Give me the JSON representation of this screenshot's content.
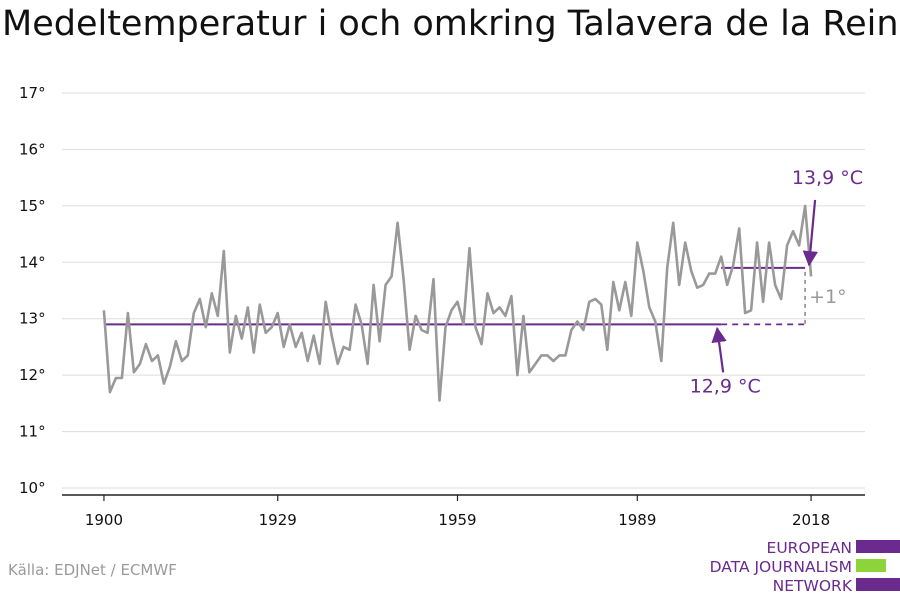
{
  "page": {
    "title": "Medeltemperatur i och omkring Talavera de la Reina",
    "source": "Källa: EDJNet / ECMWF"
  },
  "logo": {
    "lines": [
      "EUROPEAN",
      "DATA JOURNALISM",
      "NETWORK"
    ],
    "colors": {
      "purple": "#6a2a8e",
      "green": "#8cd43a"
    }
  },
  "chart_data": {
    "type": "line",
    "title": "Medeltemperatur i och omkring Talavera de la Reina",
    "xlabel": "",
    "ylabel": "",
    "xlim": [
      1893,
      2027
    ],
    "ylim": [
      10,
      17
    ],
    "grid": true,
    "x_ticks": [
      {
        "value": 1900,
        "label": "1900"
      },
      {
        "value": 1929,
        "label": "1929"
      },
      {
        "value": 1959,
        "label": "1959"
      },
      {
        "value": 1989,
        "label": "1989"
      },
      {
        "value": 2018,
        "label": "2018"
      }
    ],
    "y_ticks": [
      {
        "value": 10,
        "label": "10°"
      },
      {
        "value": 11,
        "label": "11°"
      },
      {
        "value": 12,
        "label": "12°"
      },
      {
        "value": 13,
        "label": "13°"
      },
      {
        "value": 14,
        "label": "14°"
      },
      {
        "value": 15,
        "label": "15°"
      },
      {
        "value": 16,
        "label": "16°"
      },
      {
        "value": 17,
        "label": "17°"
      }
    ],
    "series": [
      {
        "color": "#999999",
        "x_start": 1900,
        "values": [
          13.15,
          11.7,
          11.95,
          11.95,
          13.1,
          12.05,
          12.2,
          12.55,
          12.25,
          12.35,
          11.85,
          12.15,
          12.6,
          12.25,
          12.35,
          13.1,
          13.35,
          12.85,
          13.45,
          13.05,
          14.2,
          12.4,
          13.05,
          12.65,
          13.2,
          12.4,
          13.25,
          12.75,
          12.85,
          13.1,
          12.5,
          12.9,
          12.5,
          12.75,
          12.25,
          12.7,
          12.2,
          13.3,
          12.7,
          12.2,
          12.5,
          12.45,
          13.25,
          12.9,
          12.2,
          13.6,
          12.6,
          13.6,
          13.75,
          14.7,
          13.7,
          12.45,
          13.05,
          12.8,
          12.75,
          13.7,
          11.55,
          12.85,
          13.15,
          13.3,
          12.9,
          14.25,
          12.85,
          12.55,
          13.45,
          13.1,
          13.2,
          13.05,
          13.4,
          12.0,
          13.05,
          12.05,
          12.2,
          12.35,
          12.35,
          12.25,
          12.35,
          12.35,
          12.8,
          12.95,
          12.8,
          13.3,
          13.35,
          13.25,
          12.45,
          13.65,
          13.15,
          13.65,
          13.05,
          14.35,
          13.85,
          13.2,
          12.95,
          12.25,
          13.9,
          14.7,
          13.6,
          14.35,
          13.85,
          13.55,
          13.6,
          13.8,
          13.8,
          14.1,
          13.6,
          13.95,
          14.6,
          13.1,
          13.15,
          14.35,
          13.3,
          14.35,
          13.6,
          13.35,
          14.3,
          14.55,
          14.3,
          15.0,
          13.75
        ]
      }
    ],
    "reference_lines": [
      {
        "color": "#6a2a8e",
        "value": 12.9,
        "x_from": 1900,
        "x_to": 2003,
        "dashed_to": 2017
      },
      {
        "color": "#6a2a8e",
        "value": 13.9,
        "x_from": 2003,
        "x_to": 2017
      }
    ],
    "annotations": {
      "recent": {
        "label": "13,9 °C",
        "color": "#6a2a8e",
        "value": 13.9,
        "x": 2017
      },
      "baseline": {
        "label": "12,9 °C",
        "color": "#6a2a8e",
        "value": 12.9,
        "x": 2003
      },
      "difference": {
        "label": "+1°",
        "color": "#999999",
        "value_from": 12.9,
        "value_to": 13.9,
        "x": 2017
      }
    }
  }
}
